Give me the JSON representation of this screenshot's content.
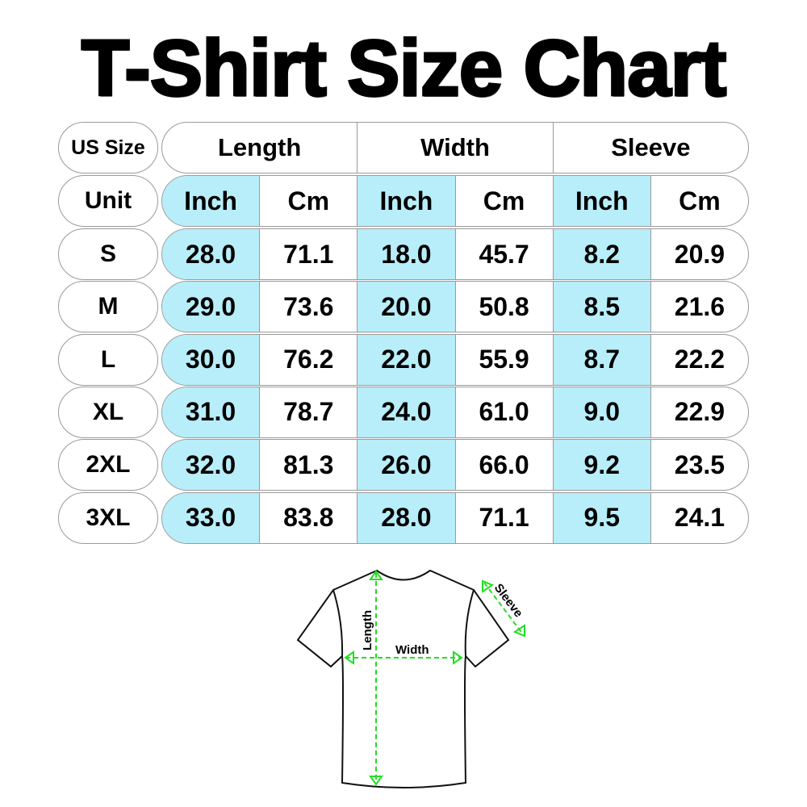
{
  "title": "T-Shirt Size Chart",
  "table": {
    "corner_label": "US Size",
    "unit_label": "Unit",
    "groups": [
      "Length",
      "Width",
      "Sleeve"
    ],
    "units": [
      "Inch",
      "Cm",
      "Inch",
      "Cm",
      "Inch",
      "Cm"
    ],
    "rows": [
      {
        "size": "S",
        "values": [
          "28.0",
          "71.1",
          "18.0",
          "45.7",
          "8.2",
          "20.9"
        ]
      },
      {
        "size": "M",
        "values": [
          "29.0",
          "73.6",
          "20.0",
          "50.8",
          "8.5",
          "21.6"
        ]
      },
      {
        "size": "L",
        "values": [
          "30.0",
          "76.2",
          "22.0",
          "55.9",
          "8.7",
          "22.2"
        ]
      },
      {
        "size": "XL",
        "values": [
          "31.0",
          "78.7",
          "24.0",
          "61.0",
          "9.0",
          "22.9"
        ]
      },
      {
        "size": "2XL",
        "values": [
          "32.0",
          "81.3",
          "26.0",
          "66.0",
          "9.2",
          "23.5"
        ]
      },
      {
        "size": "3XL",
        "values": [
          "33.0",
          "83.8",
          "28.0",
          "71.1",
          "9.5",
          "24.1"
        ]
      }
    ],
    "colors": {
      "inch_highlight": "#b8eefa",
      "border": "#9a9a9a"
    }
  },
  "diagram": {
    "length_label": "Length",
    "width_label": "Width",
    "sleeve_label": "Sleeve",
    "arrow_color": "#22dd22"
  }
}
